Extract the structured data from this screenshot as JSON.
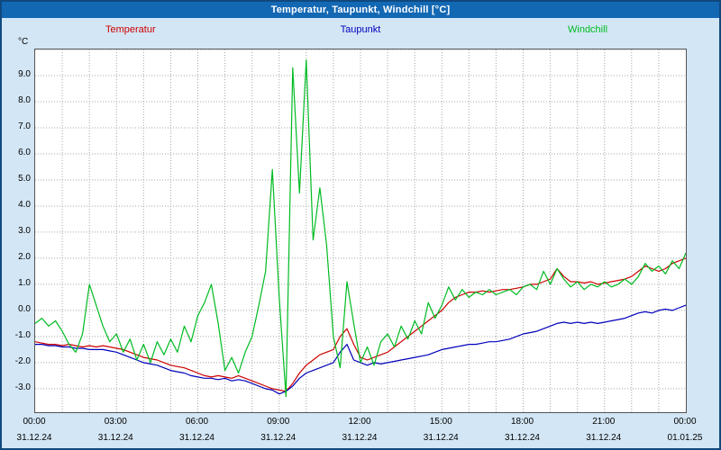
{
  "window_title": "Temperatur, Taupunkt, Windchill [°C]",
  "y_axis_unit": "°C",
  "chart_data": {
    "type": "line",
    "title": "Temperatur, Taupunkt, Windchill [°C]",
    "xlabel": "",
    "ylabel": "°C",
    "grid": "dotted",
    "legend_position": "top",
    "xlim": [
      0,
      24
    ],
    "ylim": [
      -3.9,
      10.0
    ],
    "x_start": 0,
    "x_step_hours": 0.25,
    "x_tick_hours": [
      0,
      3,
      6,
      9,
      12,
      15,
      18,
      21,
      24
    ],
    "x_tick_labels": [
      "00:00",
      "03:00",
      "06:00",
      "09:00",
      "12:00",
      "15:00",
      "18:00",
      "21:00",
      "00:00"
    ],
    "x_date_labels": [
      "31.12.24",
      "31.12.24",
      "31.12.24",
      "31.12.24",
      "31.12.24",
      "31.12.24",
      "31.12.24",
      "31.12.24",
      "01.01.25"
    ],
    "y_tick_labels": [
      "9.0",
      "8.0",
      "7.0",
      "6.0",
      "5.0",
      "4.0",
      "3.0",
      "2.0",
      "1.0",
      "0.0",
      "-1.0",
      "-2.0",
      "-3.0"
    ],
    "series": [
      {
        "name": "Temperatur",
        "color": "#cc0000",
        "values": [
          -1.2,
          -1.25,
          -1.3,
          -1.3,
          -1.35,
          -1.3,
          -1.35,
          -1.4,
          -1.35,
          -1.4,
          -1.35,
          -1.4,
          -1.45,
          -1.5,
          -1.6,
          -1.7,
          -1.8,
          -1.85,
          -1.9,
          -2.0,
          -2.1,
          -2.15,
          -2.2,
          -2.3,
          -2.4,
          -2.5,
          -2.55,
          -2.5,
          -2.55,
          -2.6,
          -2.5,
          -2.6,
          -2.7,
          -2.8,
          -2.9,
          -3.0,
          -3.05,
          -3.1,
          -2.8,
          -2.4,
          -2.1,
          -1.9,
          -1.7,
          -1.6,
          -1.5,
          -1.0,
          -0.7,
          -1.3,
          -1.8,
          -1.9,
          -1.8,
          -1.7,
          -1.6,
          -1.4,
          -1.2,
          -1.0,
          -0.8,
          -0.6,
          -0.4,
          -0.2,
          0.0,
          0.3,
          0.5,
          0.6,
          0.7,
          0.7,
          0.75,
          0.7,
          0.75,
          0.8,
          0.8,
          0.85,
          0.9,
          1.0,
          1.0,
          1.1,
          1.2,
          1.6,
          1.3,
          1.1,
          1.1,
          1.05,
          1.1,
          1.0,
          1.05,
          1.1,
          1.15,
          1.2,
          1.3,
          1.5,
          1.7,
          1.6,
          1.5,
          1.6,
          1.8,
          1.9,
          2.0
        ]
      },
      {
        "name": "Taupunkt",
        "color": "#0000bb",
        "values": [
          -1.3,
          -1.3,
          -1.35,
          -1.35,
          -1.4,
          -1.4,
          -1.45,
          -1.45,
          -1.5,
          -1.5,
          -1.5,
          -1.55,
          -1.6,
          -1.7,
          -1.8,
          -1.9,
          -2.0,
          -2.05,
          -2.1,
          -2.2,
          -2.3,
          -2.35,
          -2.4,
          -2.5,
          -2.55,
          -2.6,
          -2.6,
          -2.65,
          -2.6,
          -2.7,
          -2.65,
          -2.7,
          -2.8,
          -2.9,
          -3.0,
          -3.05,
          -3.2,
          -3.1,
          -2.9,
          -2.6,
          -2.4,
          -2.3,
          -2.2,
          -2.1,
          -2.0,
          -1.6,
          -1.3,
          -1.9,
          -2.0,
          -2.1,
          -2.0,
          -2.05,
          -2.0,
          -1.95,
          -1.9,
          -1.85,
          -1.8,
          -1.75,
          -1.7,
          -1.6,
          -1.5,
          -1.45,
          -1.4,
          -1.35,
          -1.3,
          -1.3,
          -1.25,
          -1.2,
          -1.2,
          -1.15,
          -1.1,
          -1.0,
          -0.9,
          -0.85,
          -0.8,
          -0.7,
          -0.6,
          -0.5,
          -0.45,
          -0.5,
          -0.45,
          -0.5,
          -0.45,
          -0.5,
          -0.45,
          -0.4,
          -0.35,
          -0.3,
          -0.2,
          -0.1,
          -0.05,
          -0.1,
          0.0,
          0.05,
          0.0,
          0.1,
          0.2
        ]
      },
      {
        "name": "Windchill",
        "color": "#00bb22",
        "values": [
          -0.5,
          -0.3,
          -0.6,
          -0.4,
          -0.8,
          -1.3,
          -1.6,
          -0.9,
          1.0,
          0.2,
          -0.6,
          -1.2,
          -0.9,
          -1.6,
          -1.1,
          -1.9,
          -1.3,
          -2.0,
          -1.2,
          -1.7,
          -1.1,
          -1.6,
          -0.6,
          -1.2,
          -0.2,
          0.3,
          1.0,
          -0.5,
          -2.3,
          -1.8,
          -2.4,
          -1.6,
          -1.0,
          0.2,
          1.5,
          5.4,
          0.5,
          -3.3,
          9.3,
          4.5,
          9.6,
          2.7,
          4.7,
          2.5,
          -1.0,
          -2.2,
          1.1,
          -0.5,
          -2.0,
          -1.4,
          -2.1,
          -1.2,
          -0.9,
          -1.4,
          -0.6,
          -1.1,
          -0.4,
          -0.9,
          0.3,
          -0.3,
          0.2,
          0.9,
          0.4,
          0.8,
          0.5,
          0.7,
          0.6,
          0.8,
          0.6,
          0.7,
          0.8,
          0.6,
          0.9,
          1.0,
          0.8,
          1.5,
          1.0,
          1.6,
          1.2,
          0.9,
          1.1,
          0.8,
          1.0,
          0.9,
          1.1,
          0.9,
          1.0,
          1.2,
          1.0,
          1.3,
          1.8,
          1.5,
          1.7,
          1.4,
          1.9,
          1.6,
          2.2
        ]
      }
    ]
  }
}
